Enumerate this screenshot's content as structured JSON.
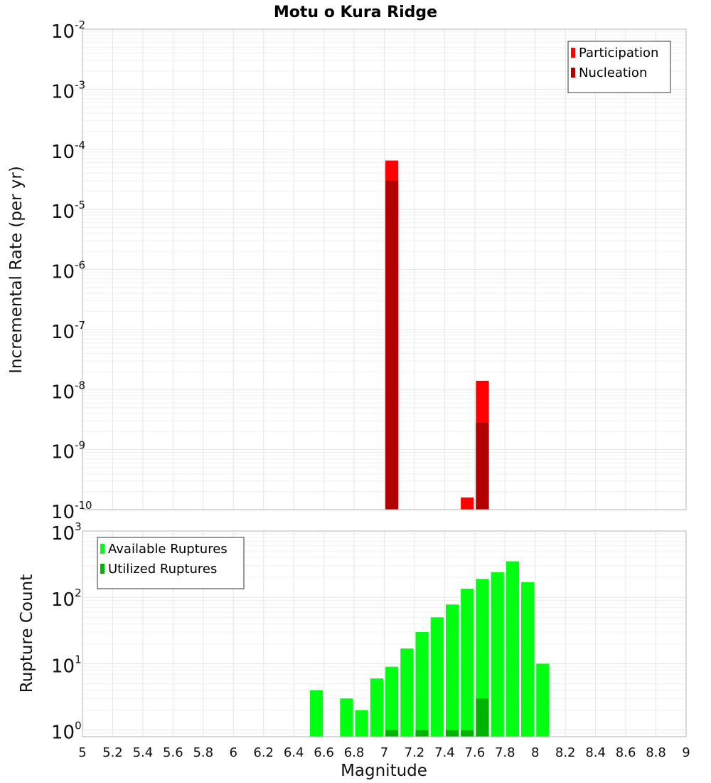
{
  "chart_data": {
    "type": "bar",
    "title": "Motu o Kura Ridge",
    "xlabel": "Magnitude",
    "xlim": [
      5,
      9
    ],
    "xticks": [
      "5",
      "5.2",
      "5.4",
      "5.6",
      "5.8",
      "6",
      "6.2",
      "6.4",
      "6.6",
      "6.8",
      "7",
      "7.2",
      "7.4",
      "7.6",
      "7.8",
      "8",
      "8.2",
      "8.4",
      "8.6",
      "8.8",
      "9"
    ],
    "bin_width": 0.1,
    "panels": [
      {
        "name": "rate",
        "ylabel": "Incremental Rate (per yr)",
        "yscale": "log",
        "ylim_exp": [
          -10,
          -2
        ],
        "yticks": [
          {
            "base": "10",
            "exp": "-2"
          },
          {
            "base": "10",
            "exp": "-3"
          },
          {
            "base": "10",
            "exp": "-4"
          },
          {
            "base": "10",
            "exp": "-5"
          },
          {
            "base": "10",
            "exp": "-6"
          },
          {
            "base": "10",
            "exp": "-7"
          },
          {
            "base": "10",
            "exp": "-8"
          },
          {
            "base": "10",
            "exp": "-9"
          },
          {
            "base": "10",
            "exp": "-10"
          }
        ],
        "legend": {
          "position": "top-right"
        },
        "series": [
          {
            "name": "Participation",
            "color": "#ff0000",
            "x": [
              7.05,
              7.55,
              7.65
            ],
            "values": [
              6.5e-05,
              1.6e-10,
              1.4e-08
            ]
          },
          {
            "name": "Nucleation",
            "color": "#b30000",
            "x": [
              7.05,
              7.65
            ],
            "values": [
              3e-05,
              2.8e-09
            ]
          }
        ]
      },
      {
        "name": "count",
        "ylabel": "Rupture Count",
        "yscale": "log",
        "ylim_exp": [
          -0.1,
          3
        ],
        "yticks": [
          {
            "base": "10",
            "exp": "3"
          },
          {
            "base": "10",
            "exp": "2"
          },
          {
            "base": "10",
            "exp": "1"
          },
          {
            "base": "10",
            "exp": "0"
          }
        ],
        "legend": {
          "position": "top-left"
        },
        "series": [
          {
            "name": "Available Ruptures",
            "color": "#00ff11",
            "x": [
              6.55,
              6.75,
              6.85,
              6.95,
              7.05,
              7.15,
              7.25,
              7.35,
              7.45,
              7.55,
              7.65,
              7.75,
              7.85,
              7.95,
              8.05
            ],
            "values": [
              4,
              3,
              2,
              6,
              9,
              17,
              30,
              50,
              78,
              135,
              190,
              240,
              350,
              170,
              10
            ]
          },
          {
            "name": "Utilized Ruptures",
            "color": "#00b300",
            "x": [
              7.05,
              7.25,
              7.45,
              7.55,
              7.65
            ],
            "values": [
              1,
              1,
              1,
              1,
              3
            ]
          }
        ]
      }
    ]
  }
}
